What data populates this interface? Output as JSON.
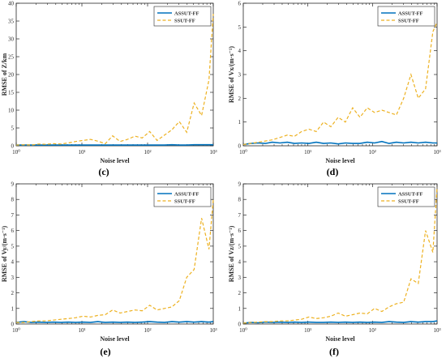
{
  "colors": {
    "assut": "#0072BD",
    "ssut": "#EDB120"
  },
  "chart_data": [
    {
      "type": "line",
      "id": "c",
      "caption": "(c)",
      "xlabel": "Noise level",
      "ylabel": "RMSE of Z/km",
      "xscale": "log",
      "xlim": [
        1,
        1000
      ],
      "ylim": [
        0,
        40
      ],
      "yticks": [
        0,
        5,
        10,
        15,
        20,
        25,
        30,
        35,
        40
      ],
      "xtick_labels": [
        "10⁰",
        "10¹",
        "10²",
        "10³"
      ],
      "legend": "top-right",
      "x": [
        1,
        1.3,
        1.7,
        2.2,
        2.8,
        3.7,
        4.8,
        6.2,
        8,
        10.4,
        13.5,
        17.5,
        22.7,
        29.4,
        38.1,
        49.4,
        64,
        83,
        107.6,
        139.5,
        180.9,
        234.6,
        304.2,
        394.5,
        511.5,
        663.3,
        860.1,
        1000
      ],
      "series": [
        {
          "name": "ASSUT-FF",
          "style": "solid",
          "values": [
            0.2,
            0.2,
            0.2,
            0.2,
            0.2,
            0.2,
            0.2,
            0.2,
            0.2,
            0.2,
            0.2,
            0.2,
            0.2,
            0.2,
            0.2,
            0.2,
            0.2,
            0.2,
            0.2,
            0.2,
            0.2,
            0.3,
            0.2,
            0.2,
            0.3,
            0.3,
            0.3,
            0.3
          ]
        },
        {
          "name": "SSUT-FF",
          "style": "dashed",
          "values": [
            0.2,
            0.3,
            0.2,
            0.5,
            0.4,
            0.6,
            0.5,
            0.8,
            1.2,
            1.5,
            1.8,
            1.3,
            0.6,
            2.8,
            1.2,
            1.8,
            2.7,
            2.2,
            4.0,
            1.5,
            3.0,
            4.5,
            6.8,
            3.8,
            12,
            8.5,
            18.5,
            37
          ]
        }
      ]
    },
    {
      "type": "line",
      "id": "d",
      "caption": "(d)",
      "xlabel": "Noise level",
      "ylabel": "RMSE of Vx/(m·s⁻¹)",
      "xscale": "log",
      "xlim": [
        1,
        1000
      ],
      "ylim": [
        0,
        6
      ],
      "yticks": [
        0,
        1,
        2,
        3,
        4,
        5,
        6
      ],
      "xtick_labels": [
        "10⁰",
        "10¹",
        "10²",
        "10³"
      ],
      "legend": "top-right",
      "x": [
        1,
        1.3,
        1.7,
        2.2,
        2.8,
        3.7,
        4.8,
        6.2,
        8,
        10.4,
        13.5,
        17.5,
        22.7,
        29.4,
        38.1,
        49.4,
        64,
        83,
        107.6,
        139.5,
        180.9,
        234.6,
        304.2,
        394.5,
        511.5,
        663.3,
        860.1,
        1000
      ],
      "series": [
        {
          "name": "ASSUT-FF",
          "style": "solid",
          "values": [
            0.05,
            0.1,
            0.12,
            0.1,
            0.15,
            0.12,
            0.15,
            0.1,
            0.12,
            0.1,
            0.15,
            0.1,
            0.12,
            0.08,
            0.12,
            0.1,
            0.1,
            0.15,
            0.12,
            0.18,
            0.1,
            0.15,
            0.12,
            0.15,
            0.12,
            0.15,
            0.12,
            0.12
          ]
        },
        {
          "name": "SSUT-FF",
          "style": "dashed",
          "values": [
            0.05,
            0.1,
            0.15,
            0.2,
            0.25,
            0.35,
            0.45,
            0.4,
            0.6,
            0.7,
            0.6,
            1.0,
            0.8,
            1.2,
            1.0,
            1.6,
            1.2,
            1.6,
            1.4,
            1.5,
            1.4,
            1.3,
            2.0,
            3.0,
            2.0,
            2.4,
            4.8,
            5.2
          ]
        }
      ]
    },
    {
      "type": "line",
      "id": "e",
      "caption": "(e)",
      "xlabel": "Noise level",
      "ylabel": "RMSE of Vy/(m·s⁻¹)",
      "xscale": "log",
      "xlim": [
        1,
        1000
      ],
      "ylim": [
        0,
        9
      ],
      "yticks": [
        0,
        1,
        2,
        3,
        4,
        5,
        6,
        7,
        8,
        9
      ],
      "xtick_labels": [
        "10⁰",
        "10¹",
        "10²",
        "10³"
      ],
      "legend": "top-right",
      "x": [
        1,
        1.3,
        1.7,
        2.2,
        2.8,
        3.7,
        4.8,
        6.2,
        8,
        10.4,
        13.5,
        17.5,
        22.7,
        29.4,
        38.1,
        49.4,
        64,
        83,
        107.6,
        139.5,
        180.9,
        234.6,
        304.2,
        394.5,
        511.5,
        663.3,
        860.1,
        1000
      ],
      "series": [
        {
          "name": "ASSUT-FF",
          "style": "solid",
          "values": [
            0.1,
            0.15,
            0.1,
            0.12,
            0.1,
            0.12,
            0.1,
            0.12,
            0.1,
            0.12,
            0.1,
            0.15,
            0.1,
            0.12,
            0.1,
            0.12,
            0.1,
            0.12,
            0.15,
            0.12,
            0.1,
            0.15,
            0.12,
            0.15,
            0.12,
            0.15,
            0.12,
            0.15
          ]
        },
        {
          "name": "SSUT-FF",
          "style": "dashed",
          "values": [
            0.1,
            0.1,
            0.15,
            0.2,
            0.2,
            0.25,
            0.3,
            0.35,
            0.4,
            0.5,
            0.45,
            0.55,
            0.6,
            0.9,
            0.7,
            0.8,
            0.9,
            0.85,
            1.2,
            0.9,
            1.0,
            1.1,
            1.5,
            3.0,
            3.5,
            6.8,
            4.8,
            8.0
          ]
        }
      ]
    },
    {
      "type": "line",
      "id": "f",
      "caption": "(f)",
      "xlabel": "Noise level",
      "ylabel": "RMSE of Vz/(m·s⁻¹)",
      "xscale": "log",
      "xlim": [
        1,
        1000
      ],
      "ylim": [
        0,
        9
      ],
      "yticks": [
        0,
        1,
        2,
        3,
        4,
        5,
        6,
        7,
        8,
        9
      ],
      "xtick_labels": [
        "10⁰",
        "10¹",
        "10²",
        "10³"
      ],
      "legend": "top-right",
      "x": [
        1,
        1.3,
        1.7,
        2.2,
        2.8,
        3.7,
        4.8,
        6.2,
        8,
        10.4,
        13.5,
        17.5,
        22.7,
        29.4,
        38.1,
        49.4,
        64,
        83,
        107.6,
        139.5,
        180.9,
        234.6,
        304.2,
        394.5,
        511.5,
        663.3,
        860.1,
        1000
      ],
      "series": [
        {
          "name": "ASSUT-FF",
          "style": "solid",
          "values": [
            0.05,
            0.1,
            0.08,
            0.12,
            0.1,
            0.12,
            0.1,
            0.12,
            0.1,
            0.12,
            0.1,
            0.1,
            0.12,
            0.1,
            0.12,
            0.1,
            0.12,
            0.1,
            0.12,
            0.1,
            0.15,
            0.12,
            0.1,
            0.15,
            0.12,
            0.15,
            0.15,
            0.2
          ]
        },
        {
          "name": "SSUT-FF",
          "style": "dashed",
          "values": [
            0.05,
            0.1,
            0.12,
            0.15,
            0.15,
            0.2,
            0.2,
            0.25,
            0.3,
            0.45,
            0.35,
            0.4,
            0.5,
            0.7,
            0.5,
            0.6,
            0.7,
            0.65,
            1.0,
            0.8,
            1.1,
            1.3,
            1.4,
            2.9,
            2.6,
            6.0,
            4.6,
            8.8
          ]
        }
      ]
    }
  ]
}
